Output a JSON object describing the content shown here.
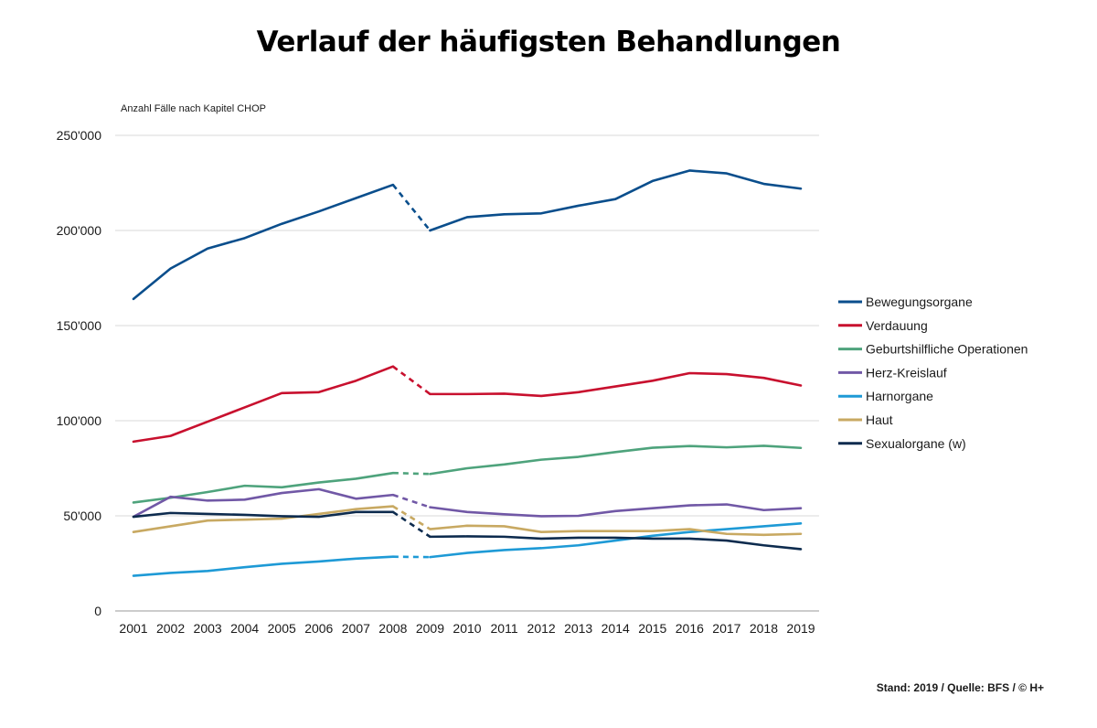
{
  "chart_data": {
    "type": "line",
    "title": "Verlauf der häufigsten Behandlungen",
    "ylabel": "Anzahl Fälle nach Kapitel CHOP",
    "xlabel": "",
    "x": [
      2001,
      2002,
      2003,
      2004,
      2005,
      2006,
      2007,
      2008,
      2009,
      2010,
      2011,
      2012,
      2013,
      2014,
      2015,
      2016,
      2017,
      2018,
      2019
    ],
    "x_tick_labels": [
      "2001",
      "2002",
      "2003",
      "2004",
      "2005",
      "2006",
      "2007",
      "2008",
      "2009",
      "2010",
      "2011",
      "2012",
      "2013",
      "2014",
      "2015",
      "2016",
      "2017",
      "2018",
      "2019"
    ],
    "ylim": [
      0,
      250000
    ],
    "y_ticks": [
      0,
      50000,
      100000,
      150000,
      200000,
      250000
    ],
    "y_tick_labels": [
      "0",
      "50'000",
      "100'000",
      "150'000",
      "200'000",
      "250'000"
    ],
    "grid": true,
    "legend_position": "right",
    "dashed_segment": [
      2008,
      2009
    ],
    "series": [
      {
        "name": "Bewegungsorgane",
        "color": "#0a4e8c",
        "values": [
          164000,
          180000,
          190500,
          196000,
          203500,
          210000,
          217000,
          224000,
          200000,
          207000,
          208500,
          209000,
          213000,
          216500,
          226000,
          231500,
          230000,
          224500,
          222000
        ]
      },
      {
        "name": "Verdauung",
        "color": "#c8102e",
        "values": [
          89000,
          92000,
          99500,
          107000,
          114500,
          115000,
          121000,
          128500,
          114000,
          114000,
          114200,
          113000,
          115000,
          118000,
          121000,
          125000,
          124500,
          122500,
          118500
        ]
      },
      {
        "name": "Geburtshilfliche Operationen",
        "color": "#4ea37c",
        "values": [
          57000,
          59500,
          62500,
          65800,
          65000,
          67500,
          69500,
          72500,
          72000,
          75000,
          77000,
          79500,
          81000,
          83500,
          85800,
          86700,
          86000,
          86800,
          85700
        ]
      },
      {
        "name": "Herz-Kreislauf",
        "color": "#7158a6",
        "values": [
          49500,
          60000,
          58000,
          58500,
          62000,
          64000,
          59000,
          61000,
          54500,
          52000,
          50800,
          49800,
          50000,
          52500,
          54000,
          55500,
          56000,
          53000,
          54000
        ]
      },
      {
        "name": "Harnorgane",
        "color": "#1e9ad6",
        "values": [
          18500,
          20000,
          21000,
          23000,
          24800,
          26000,
          27500,
          28500,
          28300,
          30500,
          32000,
          33000,
          34500,
          37000,
          39500,
          41500,
          43000,
          44500,
          46000
        ]
      },
      {
        "name": "Haut",
        "color": "#c8a962",
        "values": [
          41500,
          44500,
          47500,
          48000,
          48500,
          51000,
          53500,
          55000,
          43000,
          44800,
          44500,
          41500,
          42000,
          42000,
          42000,
          43000,
          40500,
          40000,
          40500
        ]
      },
      {
        "name": "Sexualorgane (w)",
        "color": "#0d2b4e",
        "values": [
          49500,
          51500,
          51000,
          50500,
          49800,
          49500,
          52000,
          52000,
          39000,
          39200,
          39000,
          38000,
          38500,
          38500,
          38000,
          38000,
          37000,
          34500,
          32500
        ]
      }
    ]
  },
  "footer": {
    "source": "Stand: 2019 / Quelle: BFS / © H+"
  }
}
